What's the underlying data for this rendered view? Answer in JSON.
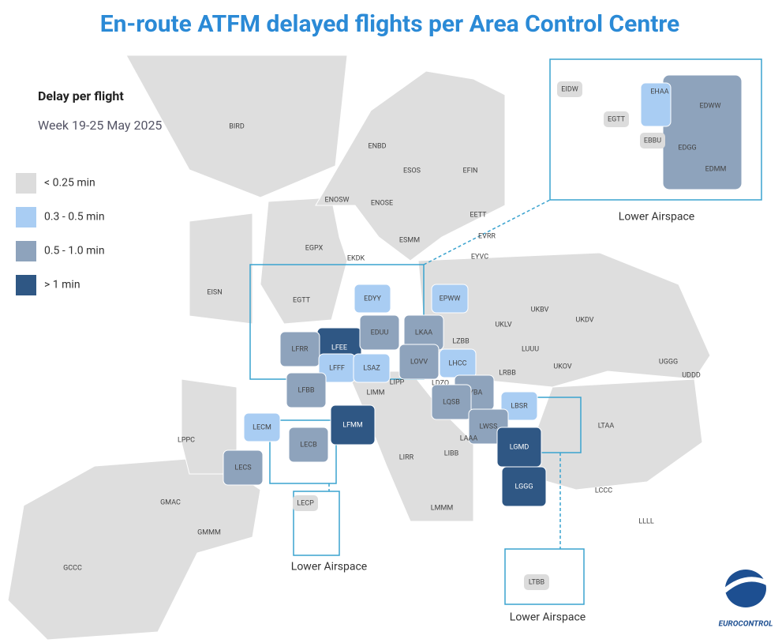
{
  "title": "En-route ATFM delayed flights per Area Control Centre",
  "legend": {
    "title": "Delay per flight",
    "subtitle": "Week 19-25 May 2025",
    "items": [
      {
        "label": "< 0.25 min",
        "color": "#dcdcdc"
      },
      {
        "label": "0.3 - 0.5 min",
        "color": "#a9cdf3"
      },
      {
        "label": "0.5 - 1.0 min",
        "color": "#8ea3bc"
      },
      {
        "label": "> 1 min",
        "color": "#2f5784"
      }
    ]
  },
  "regions": [
    {
      "label": "BIRD",
      "class": 0
    },
    {
      "label": "EISN",
      "class": 0
    },
    {
      "label": "EGPX",
      "class": 0
    },
    {
      "label": "EGTT",
      "class": 0
    },
    {
      "label": "ENOSW",
      "class": 0
    },
    {
      "label": "ENBD",
      "class": 0
    },
    {
      "label": "ESOS",
      "class": 0
    },
    {
      "label": "EFIN",
      "class": 0
    },
    {
      "label": "ENOSE",
      "class": 0
    },
    {
      "label": "ESMM",
      "class": 0
    },
    {
      "label": "EETT",
      "class": 0
    },
    {
      "label": "EVRR",
      "class": 0
    },
    {
      "label": "EYVC",
      "class": 0
    },
    {
      "label": "EKDK",
      "class": 0
    },
    {
      "label": "EDYY",
      "class": 1
    },
    {
      "label": "EPWW",
      "class": 1
    },
    {
      "label": "UKBV",
      "class": 0
    },
    {
      "label": "UKLV",
      "class": 0
    },
    {
      "label": "UKDV",
      "class": 0
    },
    {
      "label": "LFEE",
      "class": 3
    },
    {
      "label": "EDUU",
      "class": 2
    },
    {
      "label": "LKAA",
      "class": 2
    },
    {
      "label": "LZBB",
      "class": 0
    },
    {
      "label": "LFRR",
      "class": 2
    },
    {
      "label": "LFFF",
      "class": 1
    },
    {
      "label": "LSAZ",
      "class": 1
    },
    {
      "label": "LOVV",
      "class": 2
    },
    {
      "label": "LHCC",
      "class": 1
    },
    {
      "label": "LUUU",
      "class": 0
    },
    {
      "label": "UKOV",
      "class": 0
    },
    {
      "label": "UGGG",
      "class": 0
    },
    {
      "label": "UDDD",
      "class": 0
    },
    {
      "label": "LRBB",
      "class": 0
    },
    {
      "label": "LFBB",
      "class": 2
    },
    {
      "label": "LIMM",
      "class": 0
    },
    {
      "label": "LIPP",
      "class": 0
    },
    {
      "label": "LDZO",
      "class": 0
    },
    {
      "label": "LYBA",
      "class": 2
    },
    {
      "label": "LBSR",
      "class": 1
    },
    {
      "label": "LQSB",
      "class": 2
    },
    {
      "label": "LWSS",
      "class": 2
    },
    {
      "label": "LECM",
      "class": 1
    },
    {
      "label": "LFMM",
      "class": 3
    },
    {
      "label": "LECB",
      "class": 2
    },
    {
      "label": "LAAA",
      "class": 0
    },
    {
      "label": "LGMD",
      "class": 3
    },
    {
      "label": "LTAA",
      "class": 0
    },
    {
      "label": "LPPC",
      "class": 0
    },
    {
      "label": "LECS",
      "class": 2
    },
    {
      "label": "LIRR",
      "class": 0
    },
    {
      "label": "LIBB",
      "class": 0
    },
    {
      "label": "LGGG",
      "class": 3
    },
    {
      "label": "LCCC",
      "class": 0
    },
    {
      "label": "LLLL",
      "class": 0
    },
    {
      "label": "GMAC",
      "class": 0
    },
    {
      "label": "LMMM",
      "class": 0
    },
    {
      "label": "GMMM",
      "class": 0
    },
    {
      "label": "GCCC",
      "class": 0
    }
  ],
  "insets": [
    {
      "caption": "Lower Airspace",
      "regions": [
        {
          "label": "EIDW",
          "class": 0
        },
        {
          "label": "EHAA",
          "class": 1
        },
        {
          "label": "EDWW",
          "class": 2
        },
        {
          "label": "EGTT",
          "class": 0
        },
        {
          "label": "EBBU",
          "class": 0
        },
        {
          "label": "EDGG",
          "class": 2
        },
        {
          "label": "EDMM",
          "class": 2
        }
      ]
    },
    {
      "caption": "Lower Airspace",
      "regions": [
        {
          "label": "LECP",
          "class": 0
        }
      ]
    },
    {
      "caption": "Lower Airspace",
      "regions": [
        {
          "label": "LTBB",
          "class": 0
        }
      ]
    }
  ],
  "logo": "EUROCONTROL"
}
